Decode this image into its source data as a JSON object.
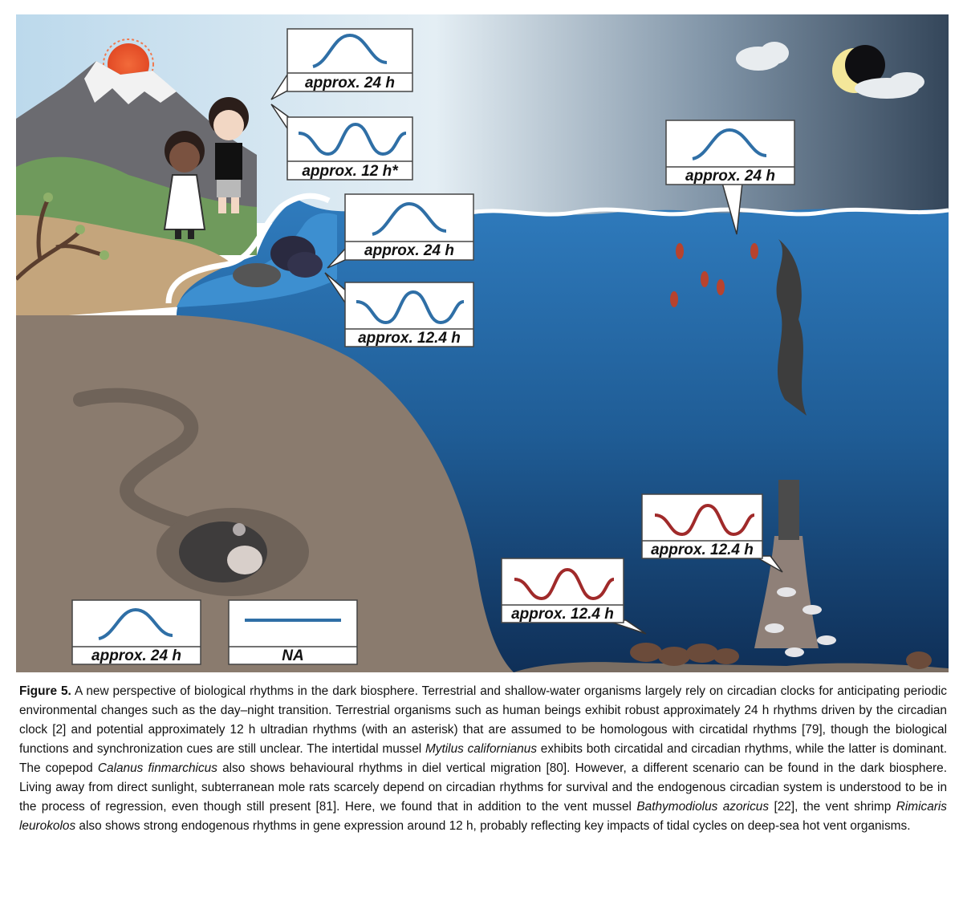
{
  "figure": {
    "labels": {
      "human_24h": "approx. 24 h",
      "human_12h": "approx. 12 h*",
      "mussel_24h": "approx. 24 h",
      "mussel_12_4h": "approx. 12.4 h",
      "copepod_24h": "approx. 24 h",
      "vent_shrimp_12_4h": "approx. 12.4 h",
      "vent_mussel_12_4h": "approx. 12.4 h",
      "mole_rat_24h": "approx. 24 h",
      "mole_rat_na": "NA"
    },
    "colors": {
      "wave_blue": "#2f6fa6",
      "wave_red": "#a02a2a",
      "soil": "#8a7b6e",
      "tunnel": "#6f6359",
      "deep_sea": "#153a6a",
      "sky_light": "#bcd9ec",
      "sky_dark": "#34465a"
    },
    "icons": [
      "sun-icon",
      "moon-icon",
      "cloud-icon",
      "mountain-icon",
      "child-icon",
      "mussel-icon",
      "copepod-icon",
      "vent-chimney-icon",
      "shrimp-icon",
      "mole-rat-icon",
      "tree-icon"
    ]
  },
  "caption": {
    "figure_label": "Figure 5.",
    "part1": " A new perspective of biological rhythms in the dark biosphere. Terrestrial and shallow-water organisms largely rely on circadian clocks for anticipating periodic environmental changes such as the day–night transition. Terrestrial organisms such as human beings exhibit robust approximately 24 h rhythms driven by the circadian clock [2] and potential approximately 12 h ultradian rhythms (with an asterisk) that are assumed to be homologous with circatidal rhythms [79], though the biological functions and synchronization cues are still unclear. The intertidal mussel ",
    "species1": "Mytilus californianus",
    "part2": " exhibits both circatidal and circadian rhythms, while the latter is dominant. The copepod ",
    "species2": "Calanus finmarchicus",
    "part3": " also shows behavioural rhythms in diel vertical migration [80]. However, a different scenario can be found in the dark biosphere. Living away from direct sunlight, subterranean mole rats scarcely depend on circadian rhythms for survival and the endogenous circadian system is understood to be in the process of regression, even though still present [81]. Here, we found that in addition to the vent mussel ",
    "species3": "Bathymodiolus azoricus",
    "part4": " [22], the vent shrimp ",
    "species4": "Rimicaris leurokolos",
    "part5": " also shows strong endogenous rhythms in gene expression around 12 h, probably reflecting key impacts of tidal cycles on deep-sea hot vent organisms."
  }
}
